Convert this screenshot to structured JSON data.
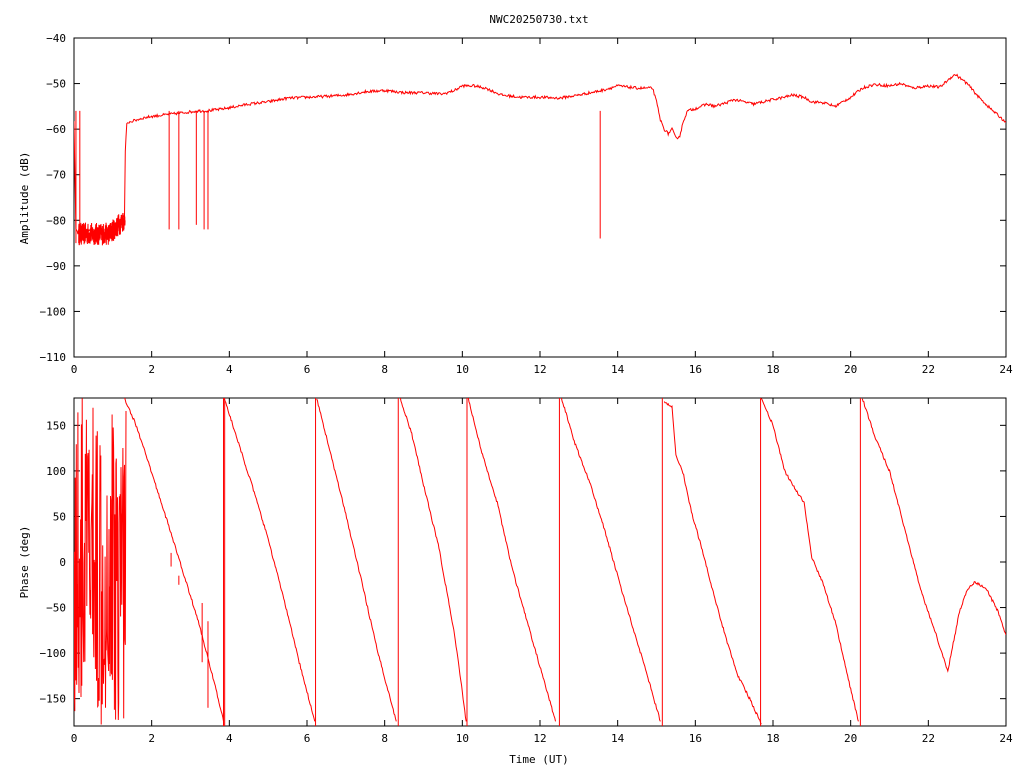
{
  "title": "NWC20250730.txt",
  "colors": {
    "series": "#ff0000",
    "axes": "#000000",
    "grid": "#000000",
    "background": "#ffffff"
  },
  "chart_data": [
    {
      "type": "line",
      "title": "NWC20250730.txt",
      "xlabel": "",
      "ylabel": "Amplitude (dB)",
      "xlim": [
        0,
        24
      ],
      "ylim": [
        -110,
        -40
      ],
      "grid": false,
      "legend": "none",
      "xticks": [
        "0",
        "2",
        "4",
        "6",
        "8",
        "10",
        "12",
        "14",
        "16",
        "18",
        "20",
        "22",
        "24"
      ],
      "yticks": [
        "-40",
        "-50",
        "-60",
        "-70",
        "-80",
        "-90",
        "-100",
        "-110"
      ],
      "series": [
        {
          "x": [
            0,
            0.05,
            0.1,
            0.12,
            0.2,
            0.3,
            0.4,
            0.5,
            0.6,
            0.7,
            0.8,
            0.9,
            1.0,
            1.1,
            1.2,
            1.3,
            1.32,
            1.36,
            1.4,
            1.6,
            1.8,
            2.0,
            2.2,
            2.4,
            2.6,
            2.8,
            3.0,
            3.2,
            3.4,
            3.6,
            3.8,
            4.0,
            4.5,
            5.0,
            5.5,
            6.0,
            6.5,
            7.0,
            7.5,
            8.0,
            8.5,
            9.0,
            9.5,
            9.8,
            10.0,
            10.3,
            10.6,
            11.0,
            11.5,
            12.0,
            12.5,
            13.0,
            13.3,
            13.6,
            14.0,
            14.5,
            14.9,
            15.0,
            15.1,
            15.2,
            15.3,
            15.4,
            15.5,
            15.6,
            15.7,
            15.8,
            16.0,
            16.3,
            16.5,
            16.8,
            17.0,
            17.5,
            18.0,
            18.3,
            18.5,
            18.8,
            19.0,
            19.3,
            19.6,
            20.0,
            20.3,
            20.6,
            21.0,
            21.3,
            21.6,
            22.0,
            22.3,
            22.6,
            22.7,
            23.0,
            23.3,
            23.6,
            24.0
          ],
          "y": [
            -58,
            -82,
            -83,
            -82,
            -83,
            -83.5,
            -82,
            -83,
            -84,
            -83,
            -82.5,
            -82,
            -81,
            -80.5,
            -80,
            -79,
            -65,
            -59,
            -58.5,
            -58,
            -57.5,
            -57.2,
            -57,
            -56.8,
            -56.6,
            -56.4,
            -56.2,
            -56,
            -56,
            -55.8,
            -55.6,
            -55.3,
            -54.5,
            -54,
            -53.2,
            -53,
            -52.8,
            -52.5,
            -51.8,
            -51.5,
            -52,
            -52,
            -52.3,
            -51.5,
            -50.5,
            -50.5,
            -51,
            -52.5,
            -53,
            -53,
            -53.2,
            -52.5,
            -52,
            -51.5,
            -50.5,
            -51,
            -51,
            -54,
            -58,
            -60,
            -61,
            -60,
            -62,
            -61.5,
            -58,
            -56,
            -55.5,
            -54.5,
            -55,
            -54.2,
            -53.5,
            -54.5,
            -53.5,
            -53,
            -52.5,
            -53,
            -54,
            -54.2,
            -55,
            -53,
            -51,
            -50.2,
            -50.5,
            -50,
            -51,
            -50.5,
            -50.8,
            -48.5,
            -48,
            -50,
            -53,
            -55.5,
            -58.5
          ]
        }
      ],
      "dropouts_x": [
        0.05,
        0.15,
        2.45,
        2.7,
        3.15,
        3.35,
        3.45,
        13.55
      ],
      "dropouts_y": [
        -85,
        -85,
        -82,
        -82,
        -81,
        -82,
        -82,
        -84
      ]
    },
    {
      "type": "line",
      "title": "",
      "xlabel": "Time (UT)",
      "ylabel": "Phase (deg)",
      "xlim": [
        0,
        24
      ],
      "ylim": [
        -180,
        180
      ],
      "grid": false,
      "legend": "none",
      "xticks": [
        "0",
        "2",
        "4",
        "6",
        "8",
        "10",
        "12",
        "14",
        "16",
        "18",
        "20",
        "22",
        "24"
      ],
      "yticks": [
        "150",
        "100",
        "50",
        "0",
        "-50",
        "-100",
        "-150"
      ],
      "segments": [
        {
          "x": [
            1.3,
            1.6,
            2.0,
            2.4,
            2.8,
            3.2,
            3.6,
            3.85
          ],
          "y": [
            180,
            150,
            98,
            45,
            -10,
            -65,
            -130,
            -175
          ]
        },
        {
          "x": [
            3.87,
            4.2,
            4.6,
            5.0,
            5.4,
            5.8,
            6.2
          ],
          "y": [
            180,
            135,
            82,
            25,
            -40,
            -110,
            -175
          ]
        },
        {
          "x": [
            6.25,
            6.6,
            7.0,
            7.4,
            7.8,
            8.3
          ],
          "y": [
            180,
            120,
            52,
            -20,
            -95,
            -175
          ]
        },
        {
          "x": [
            8.4,
            8.7,
            9.0,
            9.4,
            9.8,
            10.1
          ],
          "y": [
            180,
            140,
            85,
            15,
            -80,
            -175
          ]
        },
        {
          "x": [
            10.15,
            10.5,
            10.9,
            11.3,
            11.6,
            12.0,
            12.4
          ],
          "y": [
            180,
            120,
            65,
            -10,
            -55,
            -115,
            -175
          ]
        },
        {
          "x": [
            12.55,
            12.9,
            13.3,
            13.7,
            14.2,
            14.7,
            15.1
          ],
          "y": [
            180,
            130,
            85,
            30,
            -45,
            -115,
            -175
          ]
        },
        {
          "x": [
            15.2,
            15.4,
            15.5,
            15.7,
            15.9,
            16.2,
            16.5,
            16.8,
            17.1,
            17.4,
            17.7
          ],
          "y": [
            175,
            170,
            118,
            95,
            55,
            10,
            -40,
            -85,
            -125,
            -150,
            -178
          ]
        },
        {
          "x": [
            17.7,
            18.0,
            18.3,
            18.5,
            18.8,
            19.0,
            19.3,
            19.6,
            20.0,
            20.2
          ],
          "y": [
            180,
            150,
            100,
            85,
            65,
            5,
            -25,
            -65,
            -140,
            -175
          ]
        },
        {
          "x": [
            20.3,
            20.6,
            21.0,
            21.4,
            21.8,
            22.2,
            22.5,
            22.8,
            23.0,
            23.2,
            23.5,
            23.8,
            24.0
          ],
          "y": [
            180,
            140,
            100,
            35,
            -30,
            -80,
            -120,
            -55,
            -30,
            -22,
            -30,
            -55,
            -80
          ]
        }
      ],
      "jumps_x": [
        3.85,
        3.88,
        6.22,
        8.35,
        10.12,
        12.5,
        15.15,
        17.68,
        20.25
      ],
      "noise_range_x": [
        0,
        1.35
      ]
    }
  ]
}
